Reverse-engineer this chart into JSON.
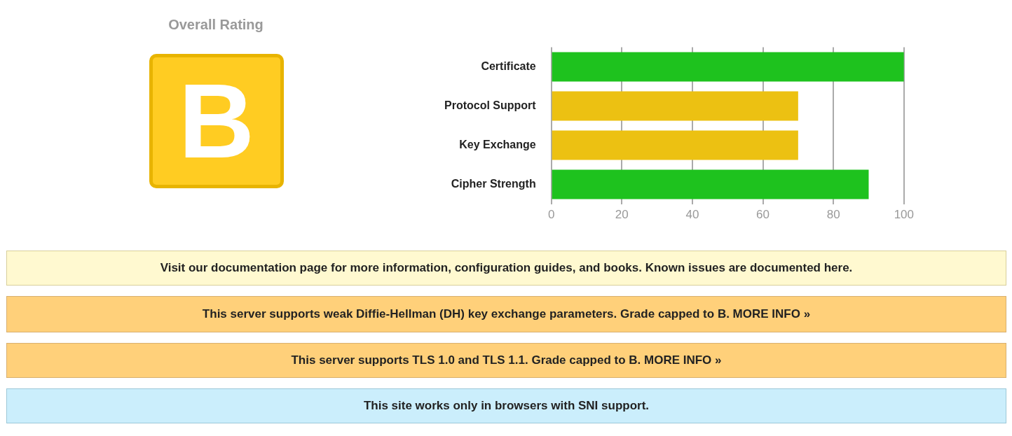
{
  "chart_data": {
    "type": "bar",
    "orientation": "horizontal",
    "categories": [
      "Certificate",
      "Protocol Support",
      "Key Exchange",
      "Cipher Strength"
    ],
    "values": [
      100,
      70,
      70,
      90
    ],
    "colors": [
      "#1ec21e",
      "#ecc112",
      "#ecc112",
      "#1ec21e"
    ],
    "xlim": [
      0,
      100
    ],
    "xticks": [
      0,
      20,
      40,
      60,
      80,
      100
    ],
    "grid": "x",
    "annotations": [
      "Overall Rating",
      "B",
      "Visit our documentation page for more information, configuration guides, and books. Known issues are documented here.",
      "This server supports weak Diffie-Hellman (DH) key exchange parameters. Grade capped to B.   MORE INFO »",
      "This server supports TLS 1.0 and TLS 1.1. Grade capped to B. MORE INFO »",
      "This site works only in browsers with SNI support."
    ]
  }
}
